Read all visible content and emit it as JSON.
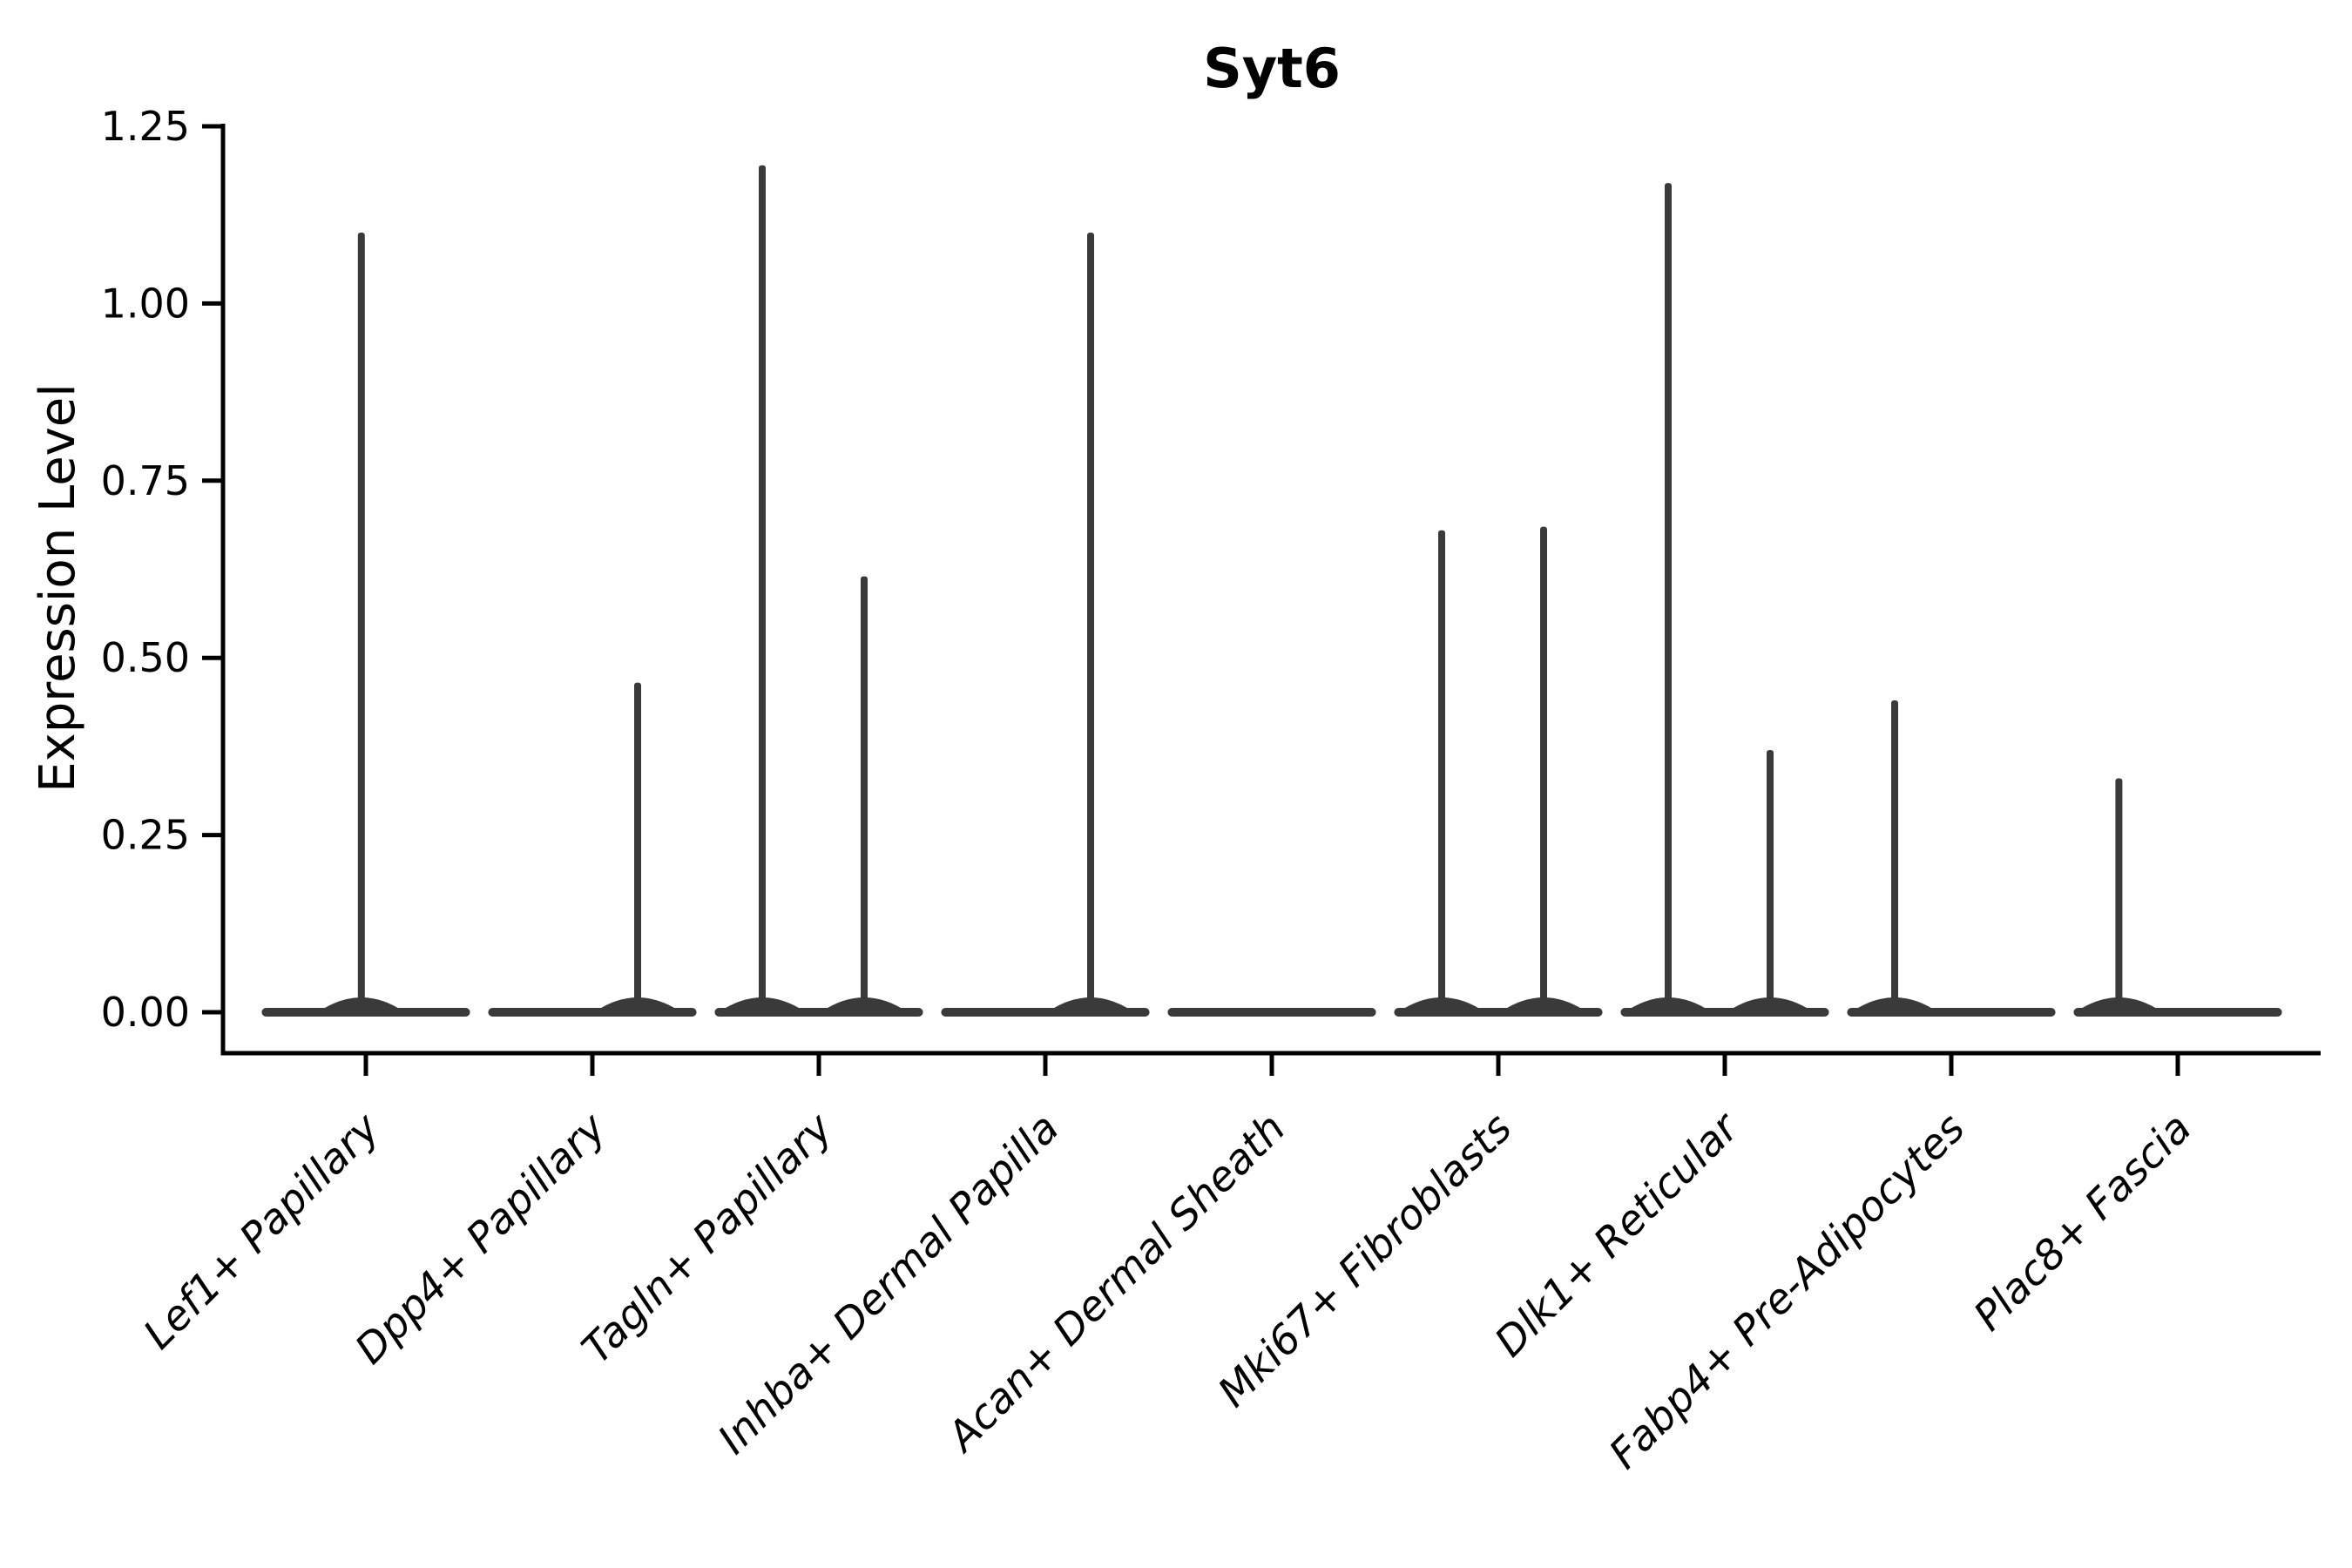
{
  "title": "Syt6",
  "colors": {
    "violin_fill": "#3a3a3a",
    "axis": "#000000",
    "text": "#000000",
    "background": "#ffffff"
  },
  "chart_data": {
    "type": "violin",
    "title": "Syt6",
    "xlabel": "",
    "ylabel": "Expression Level",
    "ylim": [
      0,
      1.25
    ],
    "ytick_labels": [
      "0.00",
      "0.25",
      "0.50",
      "0.75",
      "1.00",
      "1.25"
    ],
    "ytick_values": [
      0,
      0.25,
      0.5,
      0.75,
      1.0,
      1.25
    ],
    "grid": false,
    "legend": "none",
    "xlabel_rotation_deg": 45,
    "violin_width_frac": 0.92,
    "categories": [
      "Lef1+ Papillary",
      "Dpp4+ Papillary",
      "Tagln+ Papillary",
      "Inhba+ Dermal Papilla",
      "Acan+ Dermal Sheath",
      "Mki67+ Fibroblasts",
      "Dlk1+ Reticular",
      "Fabp4+ Pre-Adipocytes",
      "Plac8+ Fascia"
    ],
    "violins": [
      {
        "category": "Lef1+ Papillary",
        "bulk_value": 0,
        "spikes": [
          {
            "offset_frac": -0.02,
            "max_value": 1.1
          }
        ]
      },
      {
        "category": "Dpp4+ Papillary",
        "bulk_value": 0,
        "spikes": [
          {
            "offset_frac": 0.2,
            "max_value": 0.465
          }
        ]
      },
      {
        "category": "Tagln+ Papillary",
        "bulk_value": 0,
        "spikes": [
          {
            "offset_frac": -0.25,
            "max_value": 1.195
          },
          {
            "offset_frac": 0.2,
            "max_value": 0.615
          }
        ]
      },
      {
        "category": "Inhba+ Dermal Papilla",
        "bulk_value": 0,
        "spikes": [
          {
            "offset_frac": 0.2,
            "max_value": 1.1
          }
        ]
      },
      {
        "category": "Acan+ Dermal Sheath",
        "bulk_value": 0,
        "spikes": []
      },
      {
        "category": "Mki67+ Fibroblasts",
        "bulk_value": 0,
        "spikes": [
          {
            "offset_frac": -0.25,
            "max_value": 0.68
          },
          {
            "offset_frac": 0.2,
            "max_value": 0.685
          }
        ]
      },
      {
        "category": "Dlk1+ Reticular",
        "bulk_value": 0,
        "spikes": [
          {
            "offset_frac": -0.25,
            "max_value": 1.17
          },
          {
            "offset_frac": 0.2,
            "max_value": 0.37
          }
        ]
      },
      {
        "category": "Fabp4+ Pre-Adipocytes",
        "bulk_value": 0,
        "spikes": [
          {
            "offset_frac": -0.25,
            "max_value": 0.44
          }
        ]
      },
      {
        "category": "Plac8+ Fascia",
        "bulk_value": 0,
        "spikes": [
          {
            "offset_frac": -0.26,
            "max_value": 0.33
          }
        ]
      }
    ]
  }
}
